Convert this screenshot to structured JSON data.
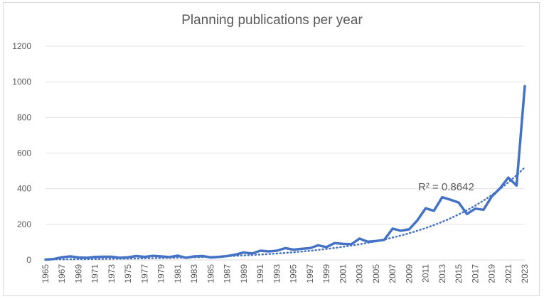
{
  "chart_data": {
    "type": "line",
    "title": "Planning publications per year",
    "xlabel": "",
    "ylabel": "",
    "ylim": [
      0,
      1200
    ],
    "yticks": [
      0,
      200,
      400,
      600,
      800,
      1000,
      1200
    ],
    "grid": true,
    "legend": "none",
    "x": [
      1965,
      1966,
      1967,
      1968,
      1969,
      1970,
      1971,
      1972,
      1973,
      1974,
      1975,
      1976,
      1977,
      1978,
      1979,
      1980,
      1981,
      1982,
      1983,
      1984,
      1985,
      1986,
      1987,
      1988,
      1989,
      1990,
      1991,
      1992,
      1993,
      1994,
      1995,
      1996,
      1997,
      1998,
      1999,
      2000,
      2001,
      2002,
      2003,
      2004,
      2005,
      2006,
      2007,
      2008,
      2009,
      2010,
      2011,
      2012,
      2013,
      2014,
      2015,
      2016,
      2017,
      2018,
      2019,
      2020,
      2021,
      2022,
      2023
    ],
    "xtick_labels": [
      "1965",
      "1967",
      "1969",
      "1971",
      "1973",
      "1975",
      "1977",
      "1979",
      "1981",
      "1983",
      "1985",
      "1987",
      "1989",
      "1991",
      "1993",
      "1995",
      "1997",
      "1999",
      "2001",
      "2003",
      "2005",
      "2007",
      "2009",
      "2011",
      "2013",
      "2015",
      "2017",
      "2019",
      "2021",
      "2023"
    ],
    "series": [
      {
        "color": "#4472c4",
        "values": [
          2,
          5,
          15,
          20,
          14,
          12,
          17,
          18,
          18,
          12,
          15,
          22,
          17,
          23,
          20,
          16,
          24,
          12,
          20,
          22,
          14,
          17,
          22,
          30,
          42,
          36,
          52,
          48,
          52,
          66,
          58,
          62,
          66,
          82,
          72,
          95,
          90,
          88,
          120,
          102,
          106,
          113,
          176,
          164,
          172,
          222,
          290,
          276,
          352,
          338,
          322,
          258,
          288,
          282,
          356,
          402,
          462,
          418,
          975
        ]
      }
    ],
    "trendline": {
      "kind": "exponential",
      "style": "dotted",
      "color": "#4472c4",
      "label": "R² = 0.8642",
      "start_value": 3,
      "end_value": 520
    }
  }
}
